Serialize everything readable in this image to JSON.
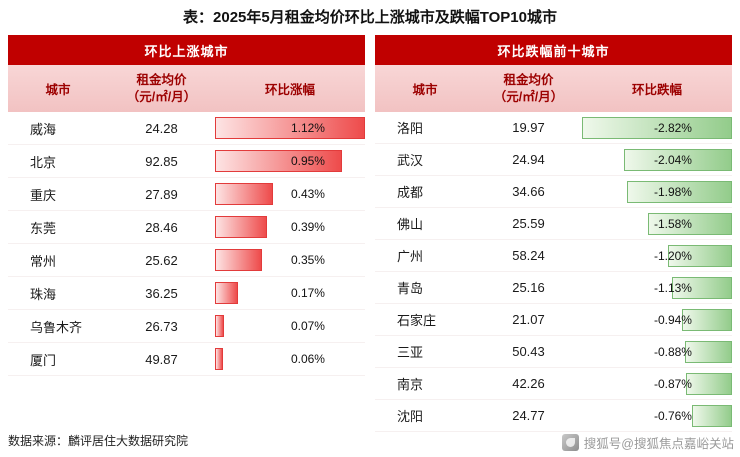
{
  "title": "表：2025年5月租金均价环比上涨城市及跌幅TOP10城市",
  "colors": {
    "header_bg": "#C00000",
    "subheader_text": "#9C0000",
    "subheader_bg_top": "#F8D6D6",
    "subheader_bg_bottom": "#F2C2C2",
    "rise_bar_start": "#FDE4E4",
    "rise_bar_end": "#EE4B4B",
    "rise_bar_border": "#E23B3B",
    "fall_bar_start": "#EFF8EB",
    "fall_bar_end": "#93CC8B",
    "fall_bar_border": "#7ABA74"
  },
  "tables": [
    {
      "id": "rise",
      "direction": "up",
      "header": "环比上涨城市",
      "columns": [
        "城市",
        "租金均价\n（元/㎡/月）",
        "环比涨幅"
      ],
      "max": 1.12,
      "rows": [
        {
          "city": "威海",
          "price": "24.28",
          "pct": "1.12%",
          "value": 1.12
        },
        {
          "city": "北京",
          "price": "92.85",
          "pct": "0.95%",
          "value": 0.95
        },
        {
          "city": "重庆",
          "price": "27.89",
          "pct": "0.43%",
          "value": 0.43
        },
        {
          "city": "东莞",
          "price": "28.46",
          "pct": "0.39%",
          "value": 0.39
        },
        {
          "city": "常州",
          "price": "25.62",
          "pct": "0.35%",
          "value": 0.35
        },
        {
          "city": "珠海",
          "price": "36.25",
          "pct": "0.17%",
          "value": 0.17
        },
        {
          "city": "乌鲁木齐",
          "price": "26.73",
          "pct": "0.07%",
          "value": 0.07
        },
        {
          "city": "厦门",
          "price": "49.87",
          "pct": "0.06%",
          "value": 0.06
        }
      ]
    },
    {
      "id": "fall",
      "direction": "down",
      "header": "环比跌幅前十城市",
      "columns": [
        "城市",
        "租金均价\n（元/㎡/月）",
        "环比跌幅"
      ],
      "max": 2.82,
      "rows": [
        {
          "city": "洛阳",
          "price": "19.97",
          "pct": "-2.82%",
          "value": -2.82
        },
        {
          "city": "武汉",
          "price": "24.94",
          "pct": "-2.04%",
          "value": -2.04
        },
        {
          "city": "成都",
          "price": "34.66",
          "pct": "-1.98%",
          "value": -1.98
        },
        {
          "city": "佛山",
          "price": "25.59",
          "pct": "-1.58%",
          "value": -1.58
        },
        {
          "city": "广州",
          "price": "58.24",
          "pct": "-1.20%",
          "value": -1.2
        },
        {
          "city": "青岛",
          "price": "25.16",
          "pct": "-1.13%",
          "value": -1.13
        },
        {
          "city": "石家庄",
          "price": "21.07",
          "pct": "-0.94%",
          "value": -0.94
        },
        {
          "city": "三亚",
          "price": "50.43",
          "pct": "-0.88%",
          "value": -0.88
        },
        {
          "city": "南京",
          "price": "42.26",
          "pct": "-0.87%",
          "value": -0.87
        },
        {
          "city": "沈阳",
          "price": "24.77",
          "pct": "-0.76%",
          "value": -0.76
        }
      ]
    }
  ],
  "footer": {
    "source": "数据来源：麟评居住大数据研究院",
    "watermark": "搜狐号@搜狐焦点嘉峪关站"
  },
  "chart_data": [
    {
      "type": "bar",
      "title": "环比上涨城市",
      "categories": [
        "威海",
        "北京",
        "重庆",
        "东莞",
        "常州",
        "珠海",
        "乌鲁木齐",
        "厦门"
      ],
      "series": [
        {
          "name": "租金均价（元/㎡/月）",
          "values": [
            24.28,
            92.85,
            27.89,
            28.46,
            25.62,
            36.25,
            26.73,
            49.87
          ]
        },
        {
          "name": "环比涨幅(%)",
          "values": [
            1.12,
            0.95,
            0.43,
            0.39,
            0.35,
            0.17,
            0.07,
            0.06
          ]
        }
      ],
      "xlabel": "",
      "ylabel": "环比涨幅",
      "xlim": [
        0,
        1.12
      ],
      "legend_position": "none",
      "grid": false,
      "orientation": "horizontal-bars-left-anchored"
    },
    {
      "type": "bar",
      "title": "环比跌幅前十城市",
      "categories": [
        "洛阳",
        "武汉",
        "成都",
        "佛山",
        "广州",
        "青岛",
        "石家庄",
        "三亚",
        "南京",
        "沈阳"
      ],
      "series": [
        {
          "name": "租金均价（元/㎡/月）",
          "values": [
            19.97,
            24.94,
            34.66,
            25.59,
            58.24,
            25.16,
            21.07,
            50.43,
            42.26,
            24.77
          ]
        },
        {
          "name": "环比跌幅(%)",
          "values": [
            -2.82,
            -2.04,
            -1.98,
            -1.58,
            -1.2,
            -1.13,
            -0.94,
            -0.88,
            -0.87,
            -0.76
          ]
        }
      ],
      "xlabel": "",
      "ylabel": "环比跌幅",
      "xlim": [
        -2.82,
        0
      ],
      "legend_position": "none",
      "grid": false,
      "orientation": "horizontal-bars-right-anchored"
    }
  ]
}
